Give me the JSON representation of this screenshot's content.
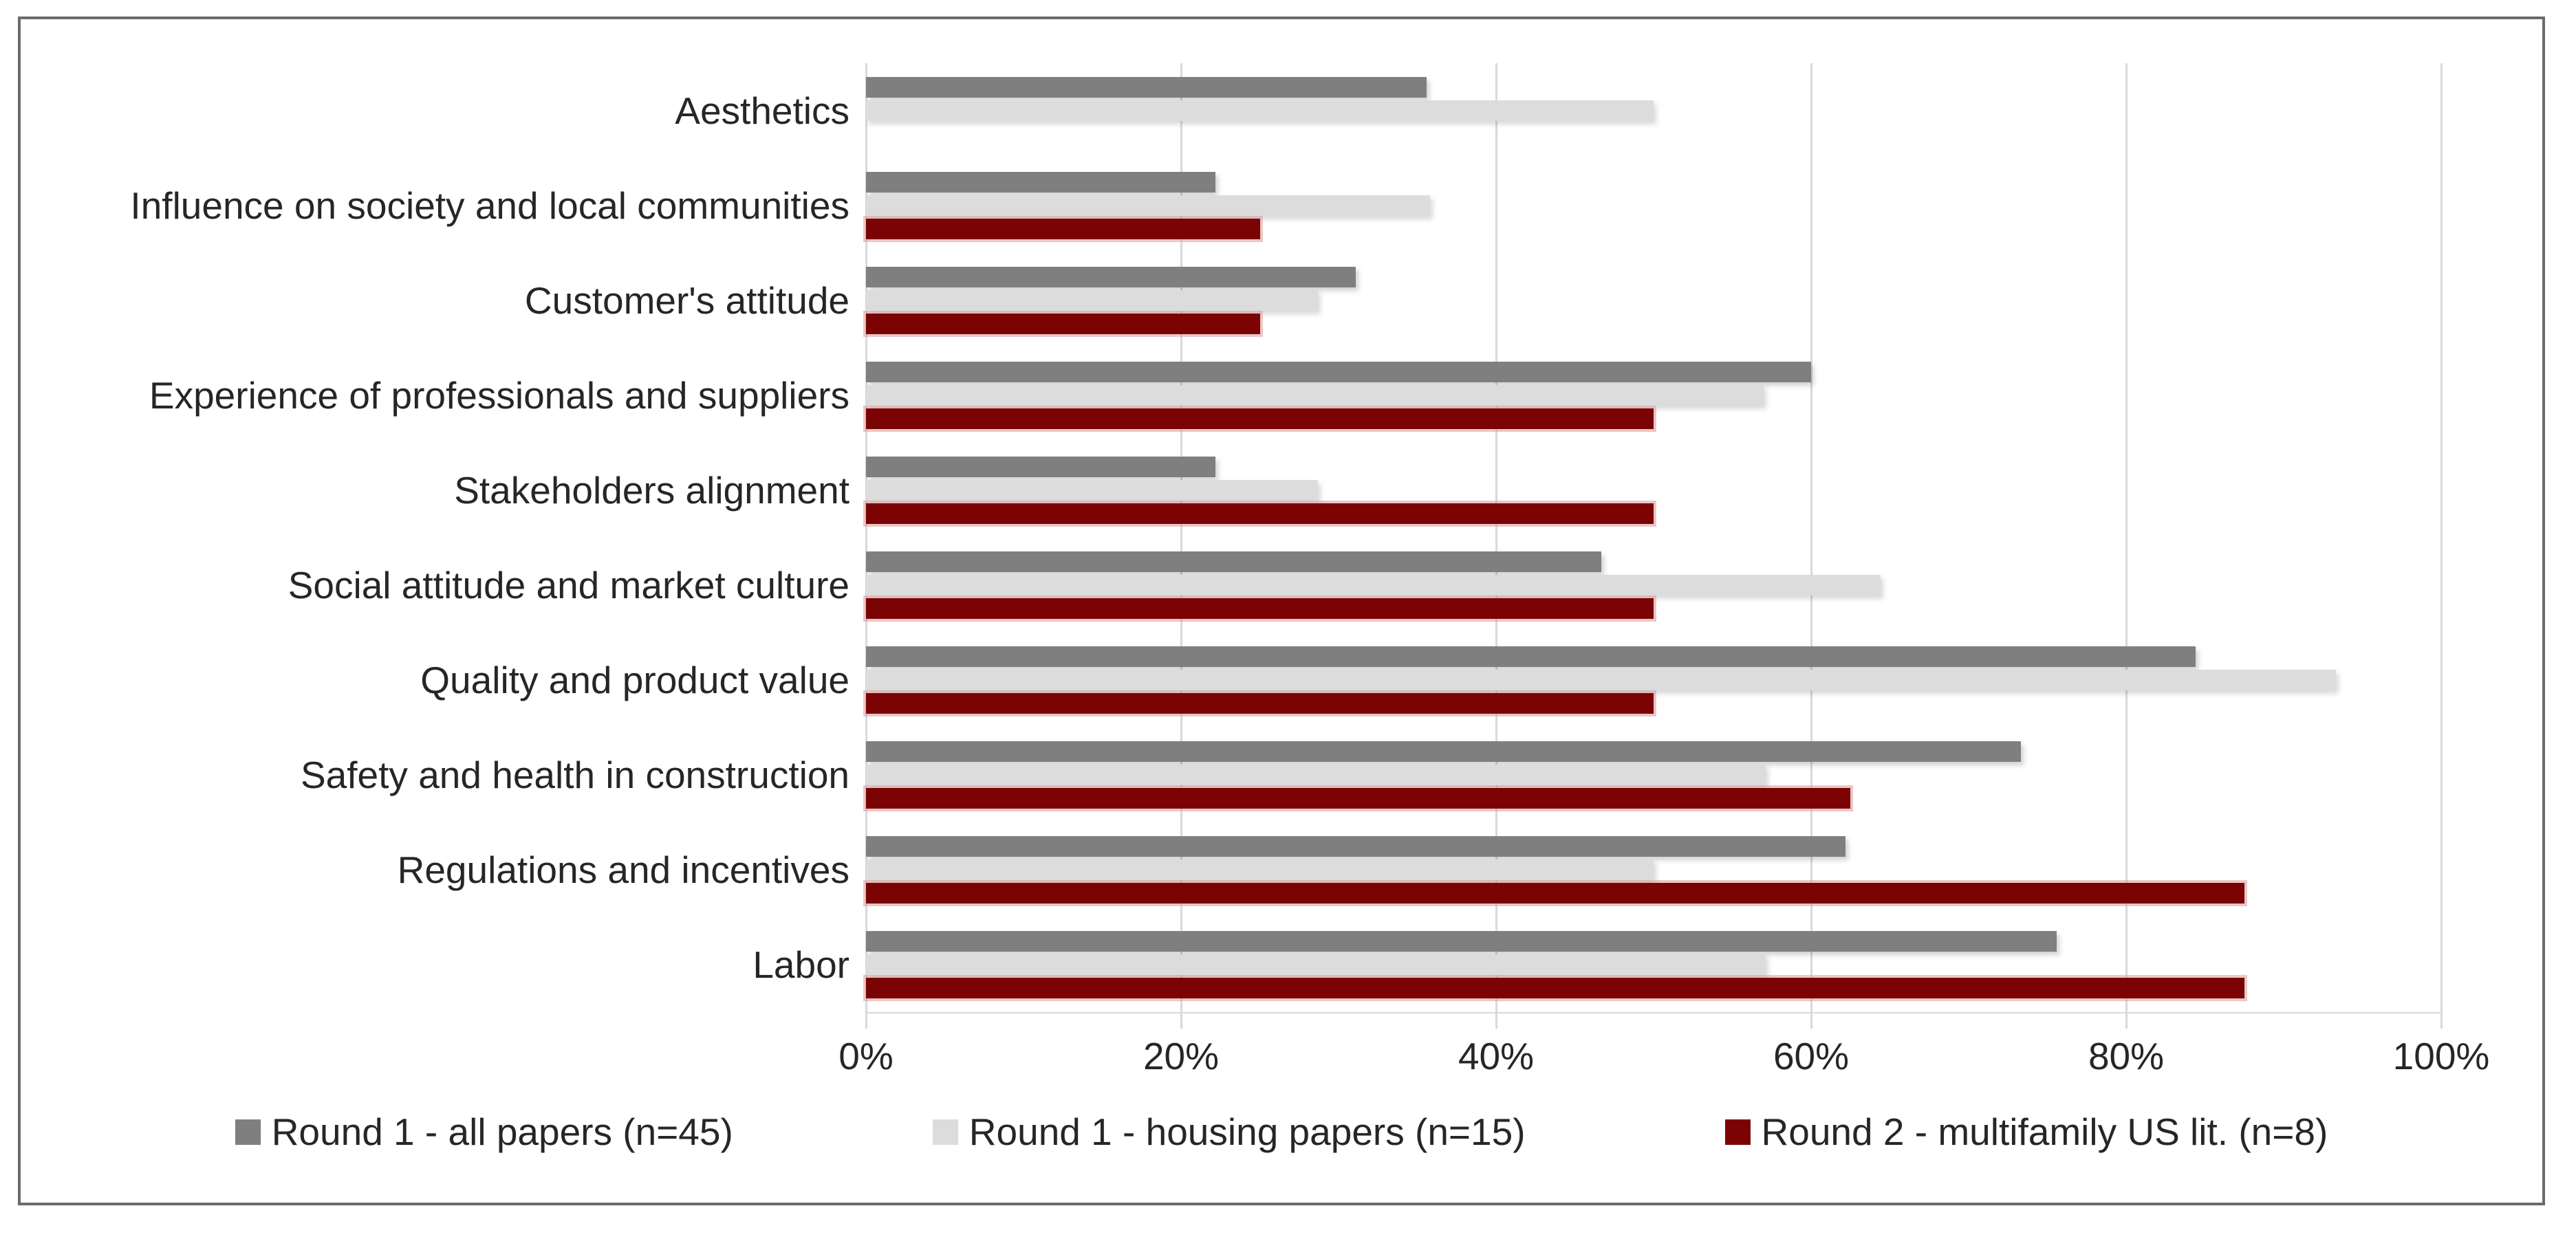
{
  "figure": {
    "background": "#ffffff",
    "border_color": "#6b6b6b",
    "gridline_color": "#d9d9d9",
    "text_color": "#262626"
  },
  "chart_data": {
    "type": "bar",
    "orientation": "horizontal",
    "title": "",
    "xlabel": "",
    "ylabel": "",
    "xlim": [
      0,
      100
    ],
    "grid": "vertical",
    "legend_position": "bottom",
    "x_ticks": [
      "0%",
      "20%",
      "40%",
      "60%",
      "80%",
      "100%"
    ],
    "x_tick_values": [
      0,
      20,
      40,
      60,
      80,
      100
    ],
    "categories": [
      "Aesthetics",
      "Influence on society and local communities",
      "Customer's attitude",
      "Experience of professionals and suppliers",
      "Stakeholders alignment",
      "Social attitude and market culture",
      "Quality and product value",
      "Safety and health in construction",
      "Regulations and incentives",
      "Labor"
    ],
    "series": [
      {
        "name": "Round 1 - all papers (n=45)",
        "color": "#7f7f7f",
        "values": [
          35.6,
          22.2,
          31.1,
          60.0,
          22.2,
          46.7,
          84.4,
          73.3,
          62.2,
          75.6
        ]
      },
      {
        "name": "Round 1 - housing papers (n=15)",
        "color": "#dcdcdc",
        "values": [
          50.0,
          35.8,
          28.7,
          57.0,
          28.7,
          64.4,
          93.3,
          57.1,
          50.0,
          57.1
        ]
      },
      {
        "name": "Round 2 - multifamily US lit. (n=8)",
        "color": "#7b0303",
        "values": [
          0,
          25.0,
          25.0,
          50.0,
          50.0,
          50.0,
          50.0,
          62.5,
          87.5,
          87.5
        ]
      }
    ]
  }
}
